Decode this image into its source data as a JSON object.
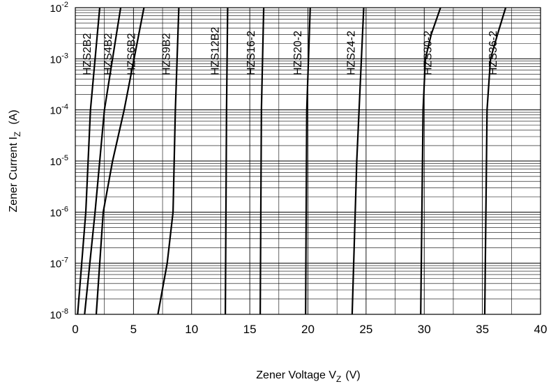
{
  "chart_data": {
    "type": "line",
    "title": "",
    "xlabel": {
      "main": "Zener Voltage V",
      "sub": "Z",
      "unit": "(V)"
    },
    "ylabel": {
      "main": "Zener Current I",
      "sub": "Z",
      "unit": "(A)"
    },
    "xlim": [
      0,
      40
    ],
    "ylim": [
      1e-08,
      0.01
    ],
    "yscale": "log",
    "grid": true,
    "x_ticks": [
      "0",
      "5",
      "10",
      "15",
      "20",
      "25",
      "30",
      "35",
      "40"
    ],
    "y_ticks": [
      {
        "base": "10",
        "exp": "-8"
      },
      {
        "base": "10",
        "exp": "-7"
      },
      {
        "base": "10",
        "exp": "-6"
      },
      {
        "base": "10",
        "exp": "-5"
      },
      {
        "base": "10",
        "exp": "-4"
      },
      {
        "base": "10",
        "exp": "-3"
      },
      {
        "base": "10",
        "exp": "-2"
      }
    ],
    "series": [
      {
        "name": "HZS2B2",
        "points": [
          [
            0.2,
            1e-08
          ],
          [
            0.9,
            1e-06
          ],
          [
            1.3,
            0.0001
          ],
          [
            2.1,
            0.01
          ]
        ]
      },
      {
        "name": "HZS4B2",
        "points": [
          [
            0.8,
            1e-08
          ],
          [
            1.7,
            1e-06
          ],
          [
            2.5,
            0.0001
          ],
          [
            3.9,
            0.01
          ]
        ]
      },
      {
        "name": "HZS6B2",
        "points": [
          [
            1.8,
            1e-08
          ],
          [
            2.4,
            1e-06
          ],
          [
            3.2,
            1e-05
          ],
          [
            4.2,
            0.0001
          ],
          [
            5.9,
            0.01
          ]
        ]
      },
      {
        "name": "HZS9B2",
        "points": [
          [
            7.1,
            1e-08
          ],
          [
            7.9,
            1e-07
          ],
          [
            8.4,
            1e-06
          ],
          [
            8.6,
            0.0001
          ],
          [
            8.9,
            0.01
          ]
        ]
      },
      {
        "name": "HZS12B2",
        "points": [
          [
            12.9,
            1e-08
          ],
          [
            13.0,
            0.0001
          ],
          [
            13.1,
            0.01
          ]
        ]
      },
      {
        "name": "HZS16-2",
        "points": [
          [
            15.9,
            1e-08
          ],
          [
            16.0,
            0.0001
          ],
          [
            16.2,
            0.01
          ]
        ]
      },
      {
        "name": "HZS20-2",
        "points": [
          [
            19.8,
            1e-08
          ],
          [
            19.9,
            0.0001
          ],
          [
            20.2,
            0.01
          ]
        ]
      },
      {
        "name": "HZS24-2",
        "points": [
          [
            23.8,
            1e-08
          ],
          [
            24.2,
            1e-05
          ],
          [
            24.8,
            0.01
          ]
        ]
      },
      {
        "name": "HZS30-2",
        "points": [
          [
            29.7,
            1e-08
          ],
          [
            29.9,
            0.0001
          ],
          [
            30.1,
            0.001
          ],
          [
            30.6,
            0.003
          ],
          [
            31.4,
            0.01
          ]
        ]
      },
      {
        "name": "HZS36-2",
        "points": [
          [
            35.2,
            1e-08
          ],
          [
            35.4,
            0.0001
          ],
          [
            35.7,
            0.001
          ],
          [
            36.3,
            0.003
          ],
          [
            37.0,
            0.01
          ]
        ]
      }
    ],
    "line_color": "#000000",
    "grid_color": "#000000"
  }
}
